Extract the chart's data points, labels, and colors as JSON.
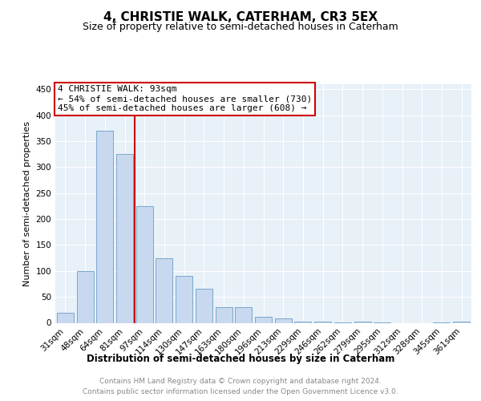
{
  "title": "4, CHRISTIE WALK, CATERHAM, CR3 5EX",
  "subtitle": "Size of property relative to semi-detached houses in Caterham",
  "xlabel": "Distribution of semi-detached houses by size in Caterham",
  "ylabel": "Number of semi-detached properties",
  "categories": [
    "31sqm",
    "48sqm",
    "64sqm",
    "81sqm",
    "97sqm",
    "114sqm",
    "130sqm",
    "147sqm",
    "163sqm",
    "180sqm",
    "196sqm",
    "213sqm",
    "229sqm",
    "246sqm",
    "262sqm",
    "279sqm",
    "295sqm",
    "312sqm",
    "328sqm",
    "345sqm",
    "361sqm"
  ],
  "values": [
    20,
    100,
    370,
    325,
    225,
    125,
    90,
    65,
    30,
    30,
    12,
    8,
    2,
    3,
    1,
    2,
    1,
    0,
    0,
    1,
    2
  ],
  "bar_color": "#c8d8ee",
  "bar_edge_color": "#7aa8cc",
  "highlight_label": "4 CHRISTIE WALK: 93sqm",
  "annotation_line1": "← 54% of semi-detached houses are smaller (730)",
  "annotation_line2": "45% of semi-detached houses are larger (608) →",
  "annotation_box_color": "#ffffff",
  "annotation_box_edge": "#cc0000",
  "red_line_color": "#cc0000",
  "ylim": [
    0,
    460
  ],
  "yticks": [
    0,
    50,
    100,
    150,
    200,
    250,
    300,
    350,
    400,
    450
  ],
  "footer_line1": "Contains HM Land Registry data © Crown copyright and database right 2024.",
  "footer_line2": "Contains public sector information licensed under the Open Government Licence v3.0.",
  "bg_color": "#e8f0f8",
  "fig_bg_color": "#ffffff",
  "title_fontsize": 11,
  "subtitle_fontsize": 9,
  "ylabel_fontsize": 8,
  "xlabel_fontsize": 8.5,
  "tick_fontsize": 7.5,
  "footer_fontsize": 6.5,
  "annot_fontsize": 8
}
